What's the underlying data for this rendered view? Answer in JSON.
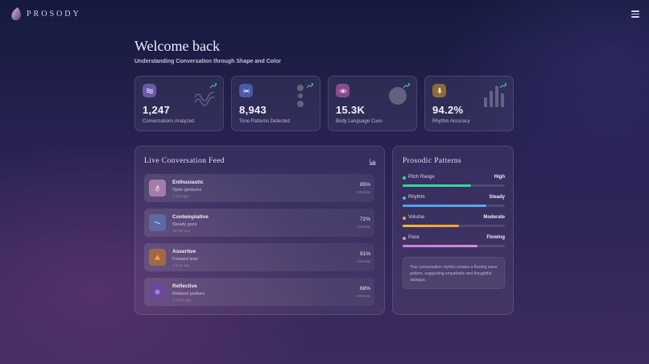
{
  "app": {
    "name": "PROSODY",
    "menu_icon": "hamburger-icon"
  },
  "header": {
    "welcome": "Welcome back",
    "subtitle": "Understanding Conversation through Shape and Color"
  },
  "stats": [
    {
      "value": "1,247",
      "label": "Conversations Analyzed",
      "icon": "waves-icon",
      "color": "#6a5aa8"
    },
    {
      "value": "8,943",
      "label": "Tone Patterns Detected",
      "icon": "broadcast-icon",
      "color": "#4a5aa8"
    },
    {
      "value": "15.3K",
      "label": "Body Language Cues",
      "icon": "eye-icon",
      "color": "#8a4a8c"
    },
    {
      "value": "94.2%",
      "label": "Rhythm Accuracy",
      "icon": "microphone-icon",
      "color": "#8a6a3a"
    }
  ],
  "feed": {
    "title": "Live Conversation Feed",
    "chart_icon": "bar-chart-icon",
    "items": [
      {
        "name": "Enthusiastic",
        "desc": "Open gestures",
        "time": "2 min ago",
        "pct": "85%",
        "intensity_label": "Intensity",
        "icon": "flame-icon",
        "color": "#a47ca8"
      },
      {
        "name": "Contemplative",
        "desc": "Steady gaze",
        "time": "15 min ago",
        "pct": "72%",
        "intensity_label": "Intensity",
        "icon": "wave-icon",
        "color": "#5d6aa0"
      },
      {
        "name": "Assertive",
        "desc": "Forward lean",
        "time": "1 hour ago",
        "pct": "91%",
        "intensity_label": "Intensity",
        "icon": "triangle-icon",
        "color": "#a06a4a"
      },
      {
        "name": "Reflective",
        "desc": "Relaxed posture",
        "time": "3 hours ago",
        "pct": "68%",
        "intensity_label": "Intensity",
        "icon": "circle-icon",
        "color": "#6a4a98"
      }
    ]
  },
  "patterns": {
    "title": "Prosodic Patterns",
    "metrics": [
      {
        "name": "Pitch Range",
        "value": "High",
        "level": 0.67,
        "color": "#3ed39a",
        "fill": "#3ecf9a"
      },
      {
        "name": "Rhythm",
        "value": "Steady",
        "level": 0.82,
        "color": "#5aa8f0",
        "fill": "#4e9ef5"
      },
      {
        "name": "Volume",
        "value": "Moderate",
        "level": 0.55,
        "color": "#f5a13a",
        "fill": "#f2b33a"
      },
      {
        "name": "Pace",
        "value": "Flowing",
        "level": 0.73,
        "color": "#d08ae0",
        "fill": "#c77ee8"
      }
    ],
    "insight": "Your conversation rhythm creates a flowing wave pattern, suggesting empathetic and thoughtful dialogue."
  }
}
